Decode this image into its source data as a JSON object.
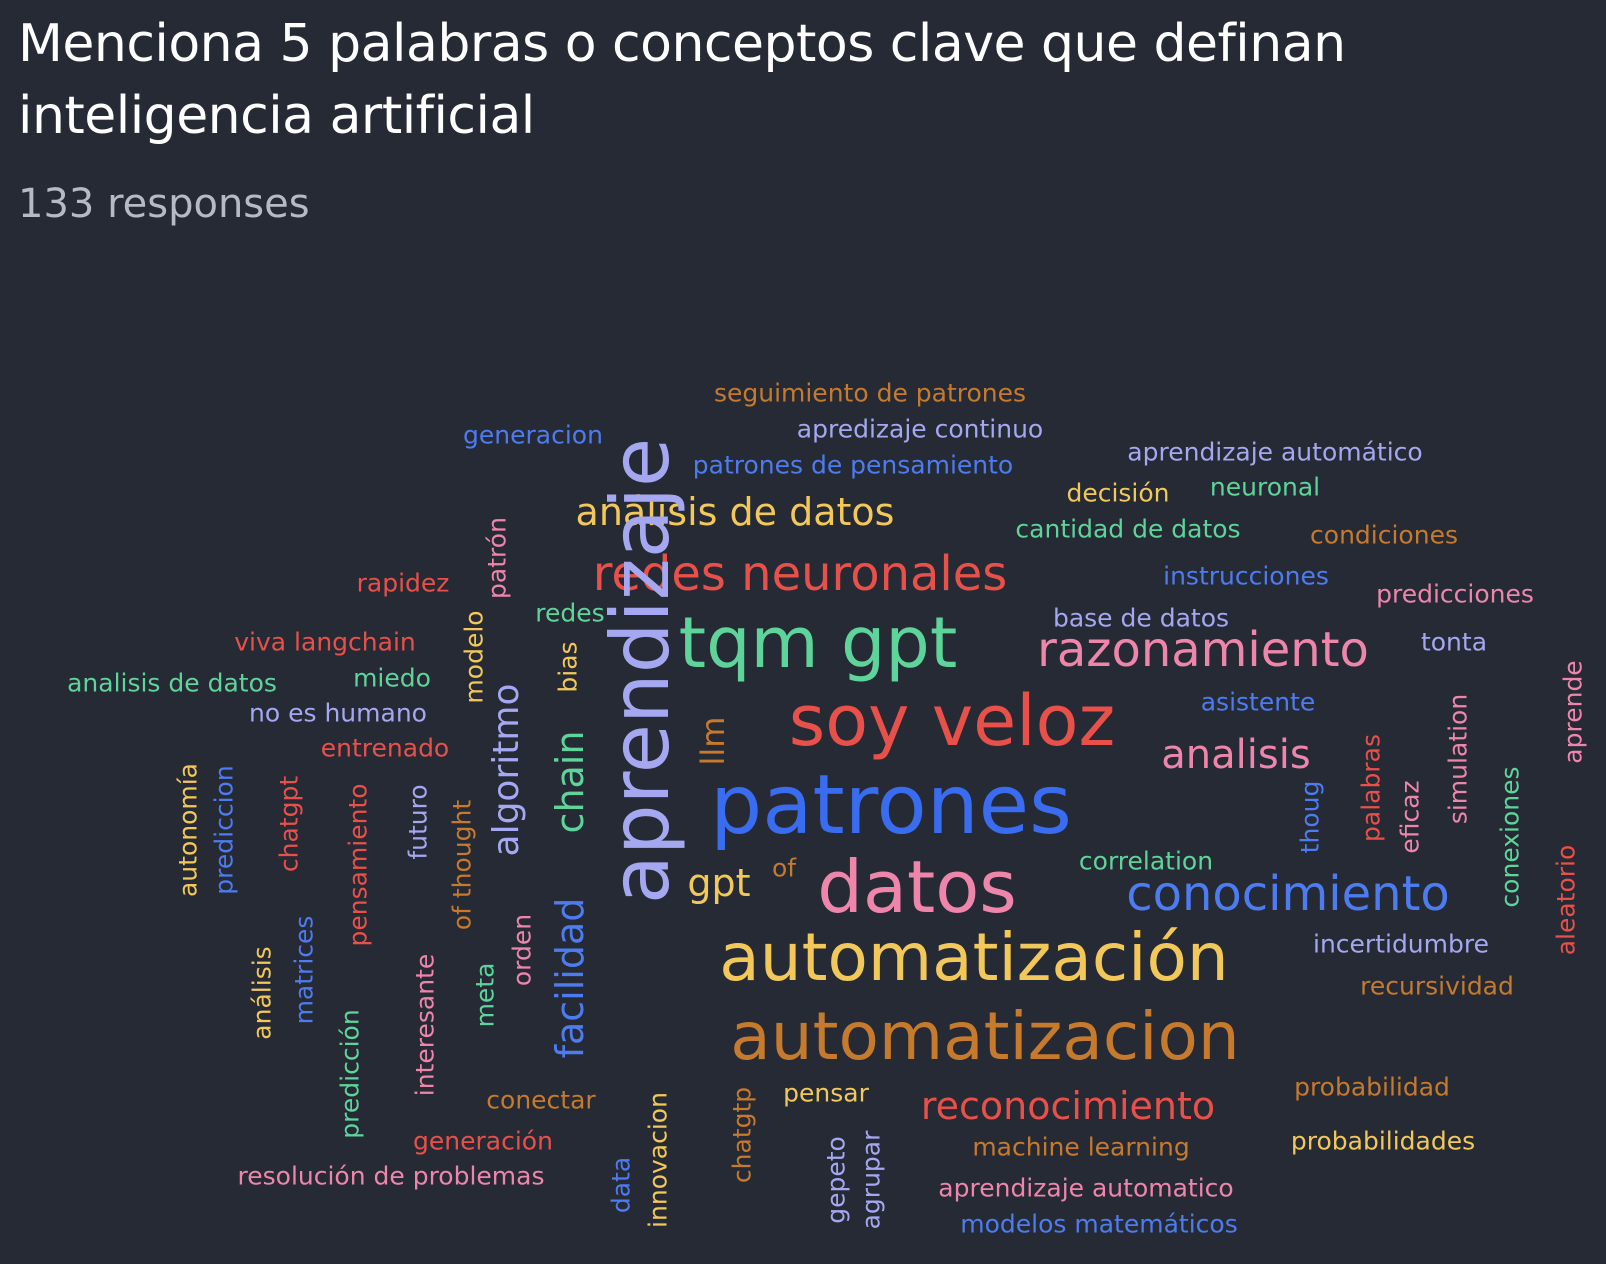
{
  "header": {
    "title": "Menciona 5 palabras o conceptos clave que definan inteligencia artificial",
    "responses": "133 responses"
  },
  "colors": {
    "background": "#252a35",
    "red": "#e8504a",
    "blue": "#3a6cf0",
    "green": "#5fd49a",
    "yellow": "#f2c85a",
    "orange": "#c57a2d",
    "pink": "#ee86ac",
    "lavender": "#a5a8f0",
    "blue2": "#4d7cf0"
  },
  "words": [
    {
      "text": "seguimiento de patrones",
      "color": "orange"
    },
    {
      "text": "apredizaje continuo",
      "color": "lavender"
    },
    {
      "text": "generacion",
      "color": "blue2"
    },
    {
      "text": "patrones de pensamiento",
      "color": "blue2"
    },
    {
      "text": "aprendizaje automático",
      "color": "lavender"
    },
    {
      "text": "decisión",
      "color": "yellow"
    },
    {
      "text": "neuronal",
      "color": "green"
    },
    {
      "text": "análisis de datos",
      "color": "yellow"
    },
    {
      "text": "cantidad de datos",
      "color": "green"
    },
    {
      "text": "condiciones",
      "color": "orange"
    },
    {
      "text": "patrón",
      "color": "pink"
    },
    {
      "text": "redes neuronales",
      "color": "red"
    },
    {
      "text": "rapidez",
      "color": "red"
    },
    {
      "text": "instrucciones",
      "color": "blue2"
    },
    {
      "text": "predicciones",
      "color": "pink"
    },
    {
      "text": "redes",
      "color": "green"
    },
    {
      "text": "base de datos",
      "color": "lavender"
    },
    {
      "text": "tqm gpt",
      "color": "green"
    },
    {
      "text": "razonamiento",
      "color": "pink"
    },
    {
      "text": "viva langchain",
      "color": "red"
    },
    {
      "text": "tonta",
      "color": "lavender"
    },
    {
      "text": "modelo",
      "color": "yellow"
    },
    {
      "text": "bias",
      "color": "yellow"
    },
    {
      "text": "analisis de datos",
      "color": "green"
    },
    {
      "text": "miedo",
      "color": "green"
    },
    {
      "text": "aprendizaje",
      "color": "lavender"
    },
    {
      "text": "asistente",
      "color": "blue2"
    },
    {
      "text": "aprende",
      "color": "pink"
    },
    {
      "text": "no es humano",
      "color": "lavender"
    },
    {
      "text": "algoritmo",
      "color": "lavender"
    },
    {
      "text": "soy veloz",
      "color": "red"
    },
    {
      "text": "llm",
      "color": "orange"
    },
    {
      "text": "simulation",
      "color": "pink"
    },
    {
      "text": "chain",
      "color": "green"
    },
    {
      "text": "entrenado",
      "color": "red"
    },
    {
      "text": "analisis",
      "color": "pink"
    },
    {
      "text": "palabras",
      "color": "red"
    },
    {
      "text": "autonomía",
      "color": "yellow"
    },
    {
      "text": "prediccion",
      "color": "blue2"
    },
    {
      "text": "chatgpt",
      "color": "red"
    },
    {
      "text": "pensamiento",
      "color": "red"
    },
    {
      "text": "futuro",
      "color": "lavender"
    },
    {
      "text": "of thought",
      "color": "orange"
    },
    {
      "text": "patrones",
      "color": "blue"
    },
    {
      "text": "thoug",
      "color": "blue2"
    },
    {
      "text": "eficaz",
      "color": "pink"
    },
    {
      "text": "conexiones",
      "color": "green"
    },
    {
      "text": "aleatorio",
      "color": "red"
    },
    {
      "text": "correlation",
      "color": "green"
    },
    {
      "text": "gpt",
      "color": "yellow"
    },
    {
      "text": "of",
      "color": "orange"
    },
    {
      "text": "datos",
      "color": "pink"
    },
    {
      "text": "conocimiento",
      "color": "blue2"
    },
    {
      "text": "análisis",
      "color": "yellow"
    },
    {
      "text": "matrices",
      "color": "blue2"
    },
    {
      "text": "orden",
      "color": "pink"
    },
    {
      "text": "facilidad",
      "color": "blue2"
    },
    {
      "text": "incertidumbre",
      "color": "lavender"
    },
    {
      "text": "automatización",
      "color": "yellow"
    },
    {
      "text": "meta",
      "color": "green"
    },
    {
      "text": "interesante",
      "color": "pink"
    },
    {
      "text": "recursividad",
      "color": "orange"
    },
    {
      "text": "predicción",
      "color": "green"
    },
    {
      "text": "automatizacion",
      "color": "orange"
    },
    {
      "text": "probabilidad",
      "color": "orange"
    },
    {
      "text": "conectar",
      "color": "orange"
    },
    {
      "text": "innovacion",
      "color": "yellow"
    },
    {
      "text": "chatgtp",
      "color": "orange"
    },
    {
      "text": "pensar",
      "color": "yellow"
    },
    {
      "text": "reconocimiento",
      "color": "red"
    },
    {
      "text": "generación",
      "color": "red"
    },
    {
      "text": "probabilidades",
      "color": "yellow"
    },
    {
      "text": "machine learning",
      "color": "orange"
    },
    {
      "text": "resolución de problemas",
      "color": "pink"
    },
    {
      "text": "data",
      "color": "blue2"
    },
    {
      "text": "gepeto",
      "color": "lavender"
    },
    {
      "text": "agrupar",
      "color": "lavender"
    },
    {
      "text": "aprendizaje automatico",
      "color": "pink"
    },
    {
      "text": "modelos matemáticos",
      "color": "blue2"
    }
  ]
}
